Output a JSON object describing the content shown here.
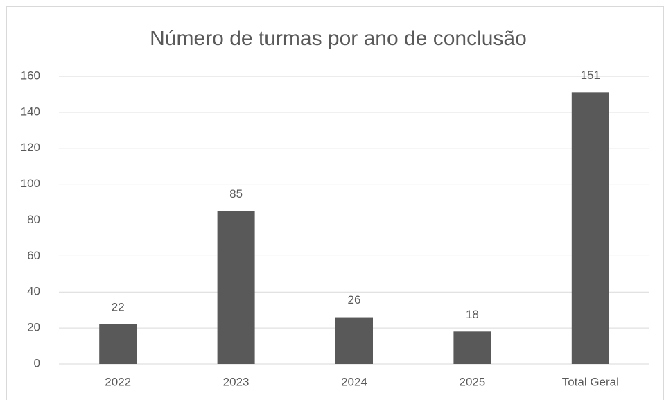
{
  "chart_data": {
    "type": "bar",
    "title": "Número de turmas por ano de conclusão",
    "categories": [
      "2022",
      "2023",
      "2024",
      "2025",
      "Total Geral"
    ],
    "values": [
      22,
      85,
      26,
      18,
      151
    ],
    "color": "#595959",
    "ylim": [
      0,
      160
    ],
    "yticks": [
      0,
      20,
      40,
      60,
      80,
      100,
      120,
      140,
      160
    ],
    "grid": true
  }
}
